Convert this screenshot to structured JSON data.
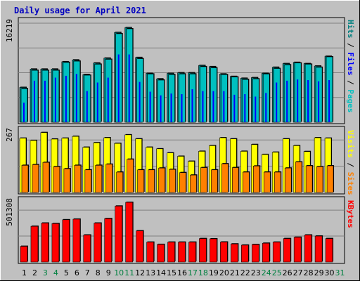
{
  "chart_data": {
    "type": "bar",
    "title": "Daily usage for April 2021",
    "categories": [
      "1",
      "2",
      "3",
      "4",
      "5",
      "6",
      "7",
      "8",
      "9",
      "10",
      "11",
      "12",
      "13",
      "14",
      "15",
      "16",
      "17",
      "18",
      "19",
      "20",
      "21",
      "22",
      "23",
      "24",
      "25",
      "26",
      "27",
      "28",
      "29",
      "30",
      "31"
    ],
    "weekend_days": [
      "3",
      "4",
      "10",
      "11",
      "17",
      "18",
      "24",
      "25",
      "31"
    ],
    "panels": [
      {
        "name": "hits_files_pages",
        "max_label": "16219",
        "ymax": 16219,
        "side_labels": [
          {
            "text": "Pages",
            "color": "#00c0c0"
          },
          {
            "text": " / ",
            "color": "#000000"
          },
          {
            "text": "Files",
            "color": "#0000ff"
          },
          {
            "text": " / ",
            "color": "#000000"
          },
          {
            "text": "Hits",
            "color": "#008080"
          }
        ],
        "series": [
          {
            "name": "Hits",
            "color": "#008080",
            "values": [
              5700,
              8700,
              8700,
              8700,
              9900,
              10200,
              7800,
              9700,
              10500,
              14700,
              15500,
              10600,
              8000,
              7100,
              8000,
              8100,
              8100,
              9300,
              9100,
              7900,
              7500,
              7200,
              7300,
              8000,
              9000,
              9600,
              9800,
              9600,
              9200,
              10800,
              0
            ]
          },
          {
            "name": "Files",
            "color": "#0000ff",
            "values": [
              3200,
              6800,
              6800,
              7300,
              7600,
              7900,
              5100,
              6500,
              7300,
              11100,
              11100,
              6600,
              5000,
              4400,
              4700,
              4600,
              5400,
              5100,
              5100,
              5100,
              4500,
              4600,
              4200,
              4800,
              6500,
              6800,
              7000,
              6900,
              6700,
              6900,
              0
            ]
          },
          {
            "name": "Pages",
            "color": "#00c0c0",
            "values": [
              5500,
              8500,
              8500,
              8500,
              9800,
              10000,
              7700,
              9500,
              10300,
              14500,
              15300,
              10400,
              7900,
              6900,
              7800,
              7900,
              7900,
              9100,
              8900,
              7800,
              7400,
              7000,
              7100,
              7900,
              8800,
              9400,
              9700,
              9500,
              9000,
              10700,
              0
            ]
          }
        ]
      },
      {
        "name": "visits_sites",
        "max_label": "267",
        "ymax": 267,
        "side_labels": [
          {
            "text": "Sites",
            "color": "#ff8000"
          },
          {
            "text": " / ",
            "color": "#000000"
          },
          {
            "text": "Visits",
            "color": "#ffff00"
          }
        ],
        "series": [
          {
            "name": "Visits",
            "color": "#ffff00",
            "values": [
              240,
              230,
              265,
              236,
              240,
              248,
              200,
              220,
              242,
              217,
              255,
              237,
              200,
              193,
              175,
              160,
              138,
              182,
              207,
              242,
              237,
              182,
              212,
              168,
              178,
              237,
              207,
              181,
              242,
              240,
              0
            ]
          },
          {
            "name": "Sites",
            "color": "#ff8000",
            "values": [
              120,
              123,
              133,
              114,
              105,
              120,
              100,
              120,
              125,
              90,
              147,
              100,
              100,
              108,
              102,
              88,
              77,
              110,
              100,
              127,
              110,
              90,
              117,
              90,
              90,
              108,
              135,
              118,
              114,
              118,
              0
            ]
          }
        ]
      },
      {
        "name": "kbytes",
        "max_label": "501308",
        "ymax": 501308,
        "side_labels": [
          {
            "text": "KBytes",
            "color": "#ff0000"
          }
        ],
        "series": [
          {
            "name": "KBytes",
            "color": "#ff0000",
            "values": [
              132000,
              300000,
              327000,
              323000,
              355000,
              360000,
              227000,
              327000,
              365000,
              470000,
              501308,
              262000,
              167000,
              148000,
              167000,
              167000,
              167000,
              197000,
              195000,
              168000,
              152000,
              142000,
              147000,
              158000,
              167000,
              197000,
              208000,
              227000,
              218000,
              197000,
              0
            ]
          }
        ]
      }
    ]
  }
}
